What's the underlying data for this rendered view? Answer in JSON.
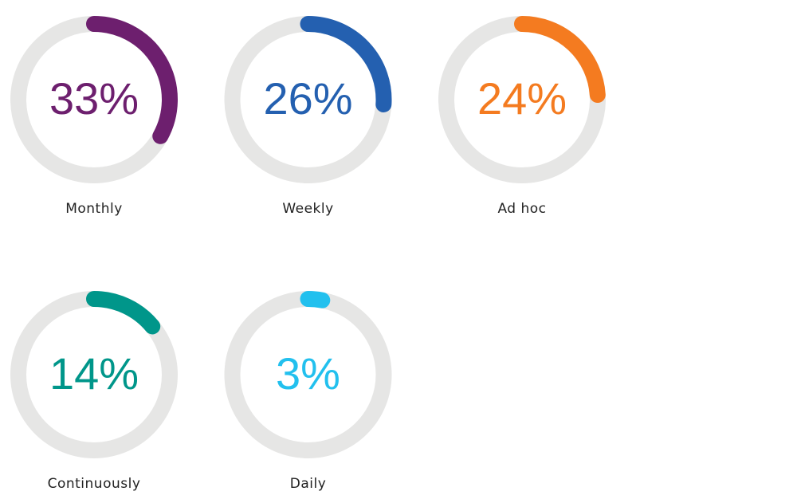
{
  "chart_data": [
    {
      "type": "donut",
      "categories": [
        "Monthly"
      ],
      "values": [
        33
      ],
      "value_labels": [
        "33%"
      ],
      "color": "#6d1f6e",
      "ylim": [
        0,
        100
      ]
    },
    {
      "type": "donut",
      "categories": [
        "Weekly"
      ],
      "values": [
        26
      ],
      "value_labels": [
        "26%"
      ],
      "color": "#2460b0",
      "ylim": [
        0,
        100
      ]
    },
    {
      "type": "donut",
      "categories": [
        "Ad hoc"
      ],
      "values": [
        24
      ],
      "value_labels": [
        "24%"
      ],
      "color": "#f47b20",
      "ylim": [
        0,
        100
      ]
    },
    {
      "type": "donut",
      "categories": [
        "Continuously"
      ],
      "values": [
        14
      ],
      "value_labels": [
        "14%"
      ],
      "color": "#00968a",
      "ylim": [
        0,
        100
      ]
    },
    {
      "type": "donut",
      "categories": [
        "Daily"
      ],
      "values": [
        3
      ],
      "value_labels": [
        "3%"
      ],
      "color": "#22c0ee",
      "ylim": [
        0,
        100
      ]
    }
  ]
}
